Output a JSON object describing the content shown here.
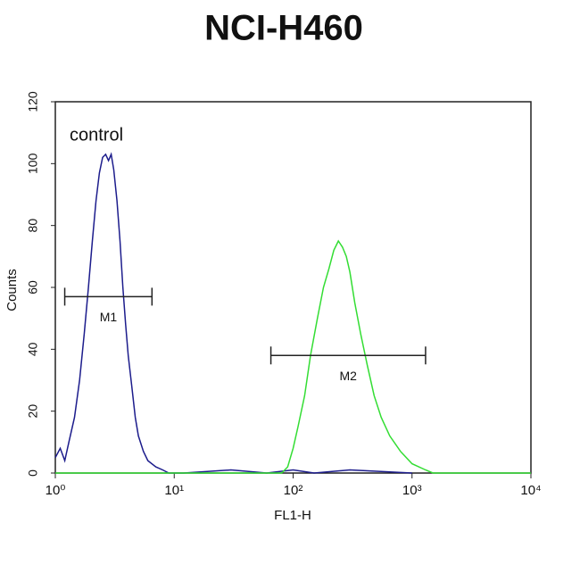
{
  "chart_data": {
    "type": "histogram-line",
    "title": "NCI-H460",
    "x_label": "FL1-H",
    "y_label": "Counts",
    "log_x": true,
    "xlim": [
      1,
      10000
    ],
    "xticks": [
      {
        "value": 1,
        "label": "10⁰"
      },
      {
        "value": 10,
        "label": "10¹"
      },
      {
        "value": 100,
        "label": "10²"
      },
      {
        "value": 1000,
        "label": "10³"
      },
      {
        "value": 10000,
        "label": "10⁴"
      }
    ],
    "ylim": [
      0,
      120
    ],
    "yticks": [
      0,
      20,
      40,
      60,
      80,
      100,
      120
    ],
    "series": [
      {
        "name": "control",
        "color": "#1c1c8c",
        "x": [
          1.0,
          1.1,
          1.2,
          1.3,
          1.45,
          1.6,
          1.75,
          1.9,
          2.05,
          2.2,
          2.35,
          2.5,
          2.65,
          2.8,
          2.95,
          3.1,
          3.3,
          3.5,
          3.7,
          3.9,
          4.1,
          4.4,
          4.7,
          5.0,
          5.5,
          6.0,
          7.0,
          8.0,
          9.0,
          12,
          30,
          60,
          100,
          150,
          300,
          1000
        ],
        "values": [
          5,
          8,
          4,
          10,
          18,
          30,
          45,
          60,
          75,
          88,
          97,
          102,
          103,
          101,
          103,
          98,
          88,
          75,
          60,
          48,
          38,
          28,
          18,
          12,
          7,
          4,
          2,
          1,
          0,
          0,
          1,
          0,
          1,
          0,
          1,
          0
        ]
      },
      {
        "color": "#33dd33",
        "x": [
          1,
          80,
          90,
          100,
          110,
          125,
          140,
          160,
          180,
          200,
          220,
          240,
          260,
          280,
          300,
          330,
          370,
          420,
          480,
          550,
          650,
          800,
          1000,
          1300,
          1500,
          10000
        ],
        "values": [
          0,
          0,
          2,
          8,
          15,
          25,
          38,
          50,
          60,
          66,
          72,
          75,
          73,
          70,
          65,
          55,
          45,
          35,
          25,
          18,
          12,
          7,
          3,
          1,
          0,
          0
        ]
      }
    ],
    "markers": [
      {
        "label": "M1",
        "x": [
          1.2,
          6.5
        ],
        "y": 57
      },
      {
        "label": "M2",
        "x": [
          65,
          1300
        ],
        "y": 38
      }
    ]
  }
}
